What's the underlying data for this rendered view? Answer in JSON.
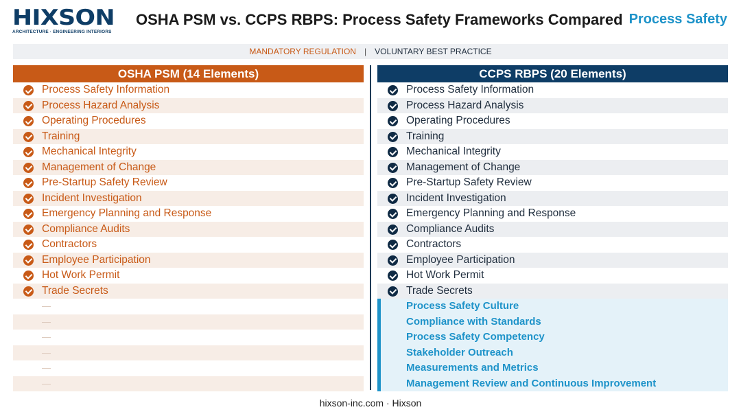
{
  "header": {
    "logo_text": "HIXSON",
    "logo_sub": "ARCHITECTURE · ENGINEERING  INTERIORS",
    "title": "OSHA PSM vs. CCPS RBPS: Process Safety Frameworks Compared",
    "badge": "Process Safety"
  },
  "legend": {
    "left": "MANDATORY REGULATION",
    "separator": "|",
    "right": "VOLUNTARY BEST PRACTICE"
  },
  "osha": {
    "heading": "OSHA PSM (14 Elements)",
    "items": [
      "Process Safety Information",
      "Process Hazard Analysis",
      "Operating Procedures",
      "Training",
      "Mechanical Integrity",
      "Management of Change",
      "Pre-Startup Safety Review",
      "Incident Investigation",
      "Emergency Planning and Response",
      "Compliance Audits",
      "Contractors",
      "Employee Participation",
      "Hot Work Permit",
      "Trade Secrets"
    ],
    "empty_marker": "—"
  },
  "ccps": {
    "heading": "CCPS RBPS (20 Elements)",
    "items": [
      "Process Safety Information",
      "Process Hazard Analysis",
      "Operating Procedures",
      "Training",
      "Mechanical Integrity",
      "Management of Change",
      "Pre-Startup Safety Review",
      "Incident Investigation",
      "Emergency Planning and Response",
      "Compliance Audits",
      "Contractors",
      "Employee Participation",
      "Hot Work Permit",
      "Trade Secrets"
    ],
    "extra_items": [
      "Process Safety Culture",
      "Compliance with Standards",
      "Process Safety Competency",
      "Stakeholder Outreach",
      "Measurements and Metrics",
      "Management Review and Continuous Improvement"
    ]
  },
  "footer": "hixson-inc.com · Hixson",
  "colors": {
    "osha_accent": "#c85a17",
    "ccps_accent": "#0e3d66",
    "extra_accent": "#1e93c9"
  }
}
